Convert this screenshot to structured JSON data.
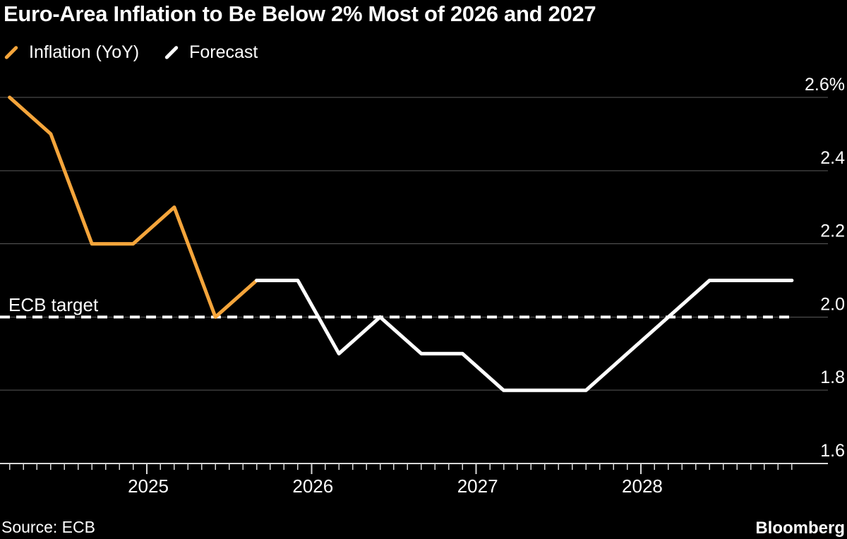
{
  "title": "Euro-Area Inflation to Be Below 2% Most of 2026 and 2027",
  "legend": [
    {
      "label": "Inflation (YoY)",
      "color": "#F5A53B",
      "icon": "diagonal-line-swatch"
    },
    {
      "label": "Forecast",
      "color": "#FFFFFF",
      "icon": "diagonal-line-swatch"
    }
  ],
  "annotation_label": "ECB target",
  "source": "Source: ECB",
  "brand": "Bloomberg",
  "colors": {
    "background": "#000000",
    "inflation_line": "#F5A53B",
    "forecast_line": "#FFFFFF",
    "gridline": "#5a5a5a",
    "axis": "#d8d8d8",
    "text": "#ffffff",
    "target_line": "#ffffff"
  },
  "chart_data": {
    "type": "line",
    "title": "Euro-Area Inflation to Be Below 2% Most of 2026 and 2027",
    "xlabel": "",
    "ylabel": "",
    "grid": true,
    "legend_position": "top-left",
    "ylim": [
      1.6,
      2.65
    ],
    "yticks": [
      {
        "value": 2.6,
        "label": "2.6%"
      },
      {
        "value": 2.4,
        "label": "2.4"
      },
      {
        "value": 2.2,
        "label": "2.2"
      },
      {
        "value": 2.0,
        "label": "2.0"
      },
      {
        "value": 1.8,
        "label": "1.8"
      },
      {
        "value": 1.6,
        "label": "1.6"
      }
    ],
    "x_year_ticks": [
      2025,
      2026,
      2027,
      2028
    ],
    "x_minor_tick_unit": "month",
    "x_range_months": [
      "2024-03",
      "2028-12"
    ],
    "target_line": {
      "label": "ECB target",
      "value": 2.0,
      "style": "dashed"
    },
    "series": [
      {
        "name": "Inflation (YoY)",
        "color": "#F5A53B",
        "points": [
          {
            "date": "2024-03",
            "value": 2.6
          },
          {
            "date": "2024-06",
            "value": 2.5
          },
          {
            "date": "2024-09",
            "value": 2.2
          },
          {
            "date": "2024-12",
            "value": 2.2
          },
          {
            "date": "2025-03",
            "value": 2.3
          },
          {
            "date": "2025-06",
            "value": 2.0
          },
          {
            "date": "2025-09",
            "value": 2.1
          }
        ]
      },
      {
        "name": "Forecast",
        "color": "#FFFFFF",
        "points": [
          {
            "date": "2025-09",
            "value": 2.1
          },
          {
            "date": "2025-12",
            "value": 2.1
          },
          {
            "date": "2026-03",
            "value": 1.9
          },
          {
            "date": "2026-06",
            "value": 2.0
          },
          {
            "date": "2026-09",
            "value": 1.9
          },
          {
            "date": "2026-12",
            "value": 1.9
          },
          {
            "date": "2027-03",
            "value": 1.8
          },
          {
            "date": "2027-06",
            "value": 1.8
          },
          {
            "date": "2027-09",
            "value": 1.8
          },
          {
            "date": "2027-12",
            "value": 1.9
          },
          {
            "date": "2028-03",
            "value": 2.0
          },
          {
            "date": "2028-06",
            "value": 2.1
          },
          {
            "date": "2028-09",
            "value": 2.1
          },
          {
            "date": "2028-12",
            "value": 2.1
          }
        ]
      }
    ]
  }
}
